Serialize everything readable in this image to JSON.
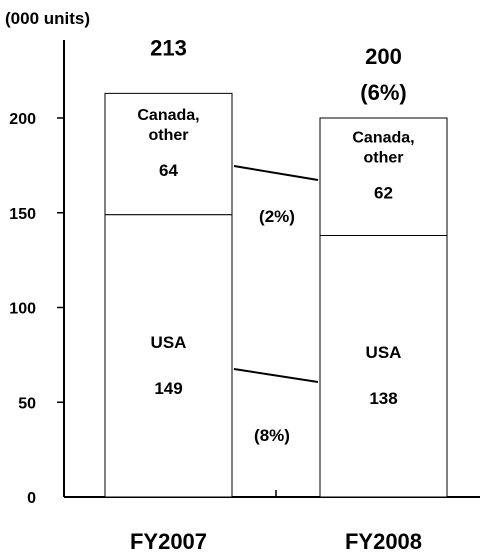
{
  "chart_data": {
    "type": "bar",
    "stacked": true,
    "unit_label": "(000 units)",
    "categories": [
      "FY2007",
      "FY2008"
    ],
    "series": [
      {
        "name": "USA",
        "values": [
          149,
          138
        ]
      },
      {
        "name": "Canada, other",
        "values": [
          64,
          62
        ]
      }
    ],
    "segment_labels": [
      {
        "name": "USA",
        "value_labels": [
          "149",
          "138"
        ]
      },
      {
        "name_lines": [
          "Canada,",
          "other"
        ],
        "value_labels": [
          "64",
          "62"
        ]
      }
    ],
    "totals": [
      "213",
      "200"
    ],
    "total_change": "(6%)",
    "change_labels": {
      "usa": "(8%)",
      "canada_other": "(2%)"
    },
    "y_ticks": [
      0,
      50,
      100,
      150,
      200
    ],
    "ylim": [
      0,
      230
    ],
    "grid": false,
    "legend": "none"
  }
}
